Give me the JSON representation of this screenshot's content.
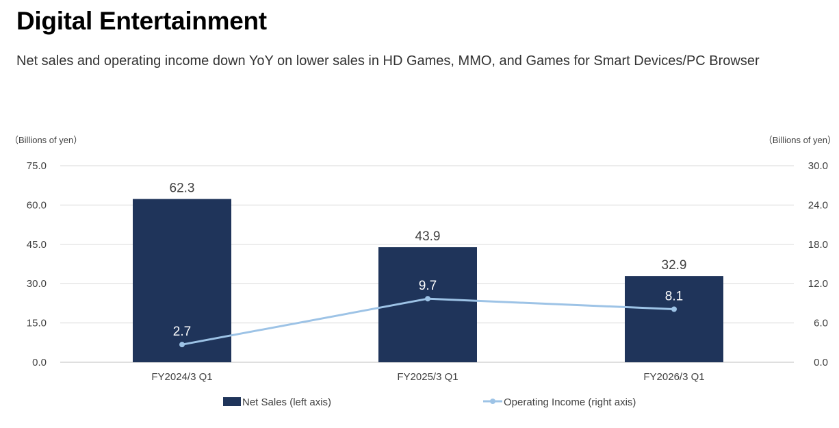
{
  "header": {
    "title": "Digital Entertainment",
    "subtitle": "Net sales and operating income down YoY on lower sales in HD Games, MMO, and Games for Smart Devices/PC Browser"
  },
  "chart_data": {
    "type": "bar",
    "categories": [
      "FY2024/3 Q1",
      "FY2025/3 Q1",
      "FY2026/3 Q1"
    ],
    "series": [
      {
        "name": "Net Sales (left axis)",
        "type": "bar",
        "axis": "left",
        "values": [
          62.3,
          43.9,
          32.9
        ],
        "labels": [
          "62.3",
          "43.9",
          "32.9"
        ],
        "color": "#1f345a"
      },
      {
        "name": "Operating Income (right axis)",
        "type": "line",
        "axis": "right",
        "values": [
          2.7,
          9.7,
          8.1
        ],
        "labels": [
          "2.7",
          "9.7",
          "8.1"
        ],
        "color": "#9dc3e6"
      }
    ],
    "left_axis": {
      "unit_label": "（Billions of yen）",
      "min": 0,
      "max": 75,
      "ticks": [
        "0.0",
        "15.0",
        "30.0",
        "45.0",
        "60.0",
        "75.0"
      ]
    },
    "right_axis": {
      "unit_label": "（Billions of yen）",
      "min": 0,
      "max": 30,
      "ticks": [
        "0.0",
        "6.0",
        "12.0",
        "18.0",
        "24.0",
        "30.0"
      ]
    },
    "grid": true,
    "legend_position": "bottom"
  }
}
